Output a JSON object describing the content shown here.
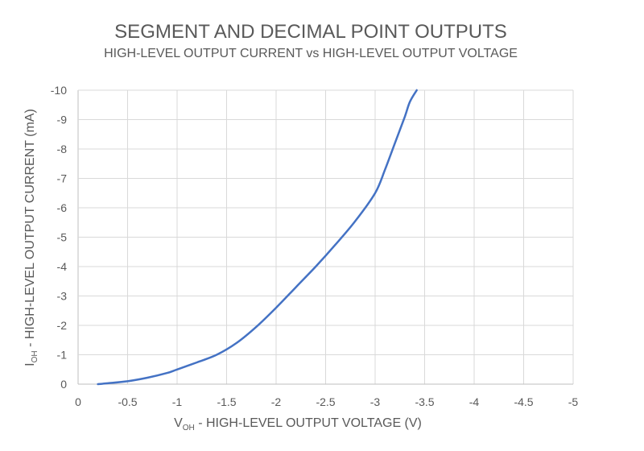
{
  "chart_data": {
    "type": "line",
    "title": "SEGMENT AND DECIMAL POINT OUTPUTS",
    "subtitle": "HIGH-LEVEL OUTPUT CURRENT vs HIGH-LEVEL OUTPUT VOLTAGE",
    "xlabel": {
      "main": "V",
      "sub": "OH",
      "rest": " - HIGH-LEVEL OUTPUT VOLTAGE (V)"
    },
    "ylabel": {
      "main": "I",
      "sub": "OH",
      "rest": " - HIGH-LEVEL OUTPUT CURRENT (mA)"
    },
    "xlim": [
      0,
      -5
    ],
    "ylim": [
      0,
      -10
    ],
    "x_ticks": [
      0,
      -0.5,
      -1,
      -1.5,
      -2,
      -2.5,
      -3,
      -3.5,
      -4,
      -4.5,
      -5
    ],
    "x_tick_labels": [
      "0",
      "-0.5",
      "-1",
      "-1.5",
      "-2",
      "-2.5",
      "-3",
      "-3.5",
      "-4",
      "-4.5",
      "-5"
    ],
    "y_ticks": [
      0,
      -1,
      -2,
      -3,
      -4,
      -5,
      -6,
      -7,
      -8,
      -9,
      -10
    ],
    "y_tick_labels": [
      "0",
      "-1",
      "-2",
      "-3",
      "-4",
      "-5",
      "-6",
      "-7",
      "-8",
      "-9",
      "-10"
    ],
    "grid": true,
    "series": [
      {
        "color": "#4472C4",
        "x": [
          -0.2,
          -0.3,
          -0.5,
          -0.7,
          -0.9,
          -1.0,
          -1.2,
          -1.4,
          -1.6,
          -1.8,
          -2.0,
          -2.2,
          -2.4,
          -2.6,
          -2.8,
          -3.0,
          -3.1,
          -3.2,
          -3.3,
          -3.35,
          -3.42
        ],
        "y": [
          0,
          -0.03,
          -0.1,
          -0.22,
          -0.38,
          -0.5,
          -0.74,
          -1.0,
          -1.4,
          -1.95,
          -2.6,
          -3.3,
          -4.0,
          -4.75,
          -5.55,
          -6.5,
          -7.3,
          -8.2,
          -9.1,
          -9.6,
          -10
        ]
      }
    ]
  }
}
